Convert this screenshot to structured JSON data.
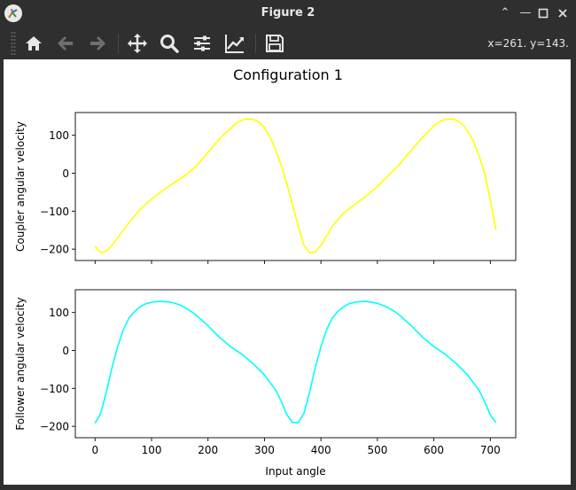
{
  "window": {
    "title": "Figure 2"
  },
  "toolbar": {
    "buttons": [
      "home-icon",
      "back-icon",
      "forward-icon",
      "pan-icon",
      "zoom-icon",
      "configure-subplots-icon",
      "edit-axis-icon",
      "save-icon"
    ],
    "coords": "x=261. y=143."
  },
  "colors": {
    "top_series": "#ffff00",
    "bottom_series": "#00ffff",
    "chrome": "#2f2f2f"
  },
  "chart_data": [
    {
      "type": "line",
      "title": "Configuration 1",
      "xlabel": "",
      "ylabel": "Coupler angular velocity",
      "xlim": [
        -35,
        745
      ],
      "ylim": [
        -230,
        160
      ],
      "xticks": [
        0,
        100,
        200,
        300,
        400,
        500,
        600,
        700
      ],
      "yticks": [
        -200,
        -100,
        0,
        100
      ],
      "ytick_labels": [
        "−200",
        "−100",
        "0",
        "100"
      ],
      "series": [
        {
          "color": "#ffff00",
          "x": [
            0,
            10,
            20,
            30,
            40,
            60,
            80,
            100,
            120,
            140,
            160,
            180,
            200,
            220,
            240,
            250,
            260,
            270,
            280,
            290,
            300,
            310,
            320,
            330,
            340,
            350,
            360,
            370,
            380,
            390,
            400,
            420,
            440,
            460,
            480,
            500,
            520,
            540,
            560,
            580,
            600,
            610,
            620,
            630,
            640,
            650,
            660,
            670,
            680,
            690,
            700,
            710
          ],
          "y": [
            -192,
            -210,
            -205,
            -190,
            -170,
            -130,
            -95,
            -68,
            -45,
            -25,
            -5,
            20,
            55,
            90,
            118,
            132,
            140,
            143,
            142,
            135,
            120,
            95,
            60,
            20,
            -30,
            -85,
            -140,
            -190,
            -210,
            -208,
            -190,
            -140,
            -105,
            -82,
            -60,
            -35,
            -5,
            25,
            60,
            95,
            125,
            136,
            142,
            143,
            140,
            130,
            110,
            85,
            45,
            0,
            -70,
            -150
          ]
        }
      ]
    },
    {
      "type": "line",
      "title": "",
      "xlabel": "Input angle",
      "ylabel": "Follower angular velocity",
      "xlim": [
        -35,
        745
      ],
      "ylim": [
        -230,
        160
      ],
      "xticks": [
        0,
        100,
        200,
        300,
        400,
        500,
        600,
        700
      ],
      "yticks": [
        -200,
        -100,
        0,
        100
      ],
      "xtick_labels": [
        "0",
        "100",
        "200",
        "300",
        "400",
        "500",
        "600",
        "700"
      ],
      "ytick_labels": [
        "−200",
        "−100",
        "0",
        "100"
      ],
      "series": [
        {
          "color": "#00ffff",
          "x": [
            0,
            10,
            20,
            30,
            40,
            50,
            60,
            70,
            80,
            90,
            100,
            110,
            120,
            130,
            140,
            150,
            160,
            170,
            180,
            200,
            220,
            240,
            260,
            280,
            300,
            320,
            330,
            340,
            350,
            360,
            370,
            380,
            390,
            400,
            410,
            420,
            430,
            440,
            450,
            460,
            470,
            480,
            490,
            500,
            510,
            520,
            530,
            540,
            560,
            580,
            600,
            620,
            640,
            660,
            680,
            690,
            700,
            710
          ],
          "y": [
            -192,
            -165,
            -110,
            -45,
            10,
            55,
            85,
            103,
            115,
            123,
            127,
            129,
            129,
            128,
            125,
            120,
            112,
            103,
            92,
            65,
            35,
            10,
            -10,
            -35,
            -65,
            -105,
            -135,
            -170,
            -190,
            -190,
            -165,
            -110,
            -45,
            10,
            55,
            85,
            103,
            115,
            123,
            127,
            129,
            129,
            127,
            124,
            119,
            112,
            103,
            92,
            65,
            35,
            10,
            -10,
            -35,
            -65,
            -105,
            -135,
            -170,
            -190
          ]
        }
      ]
    }
  ]
}
